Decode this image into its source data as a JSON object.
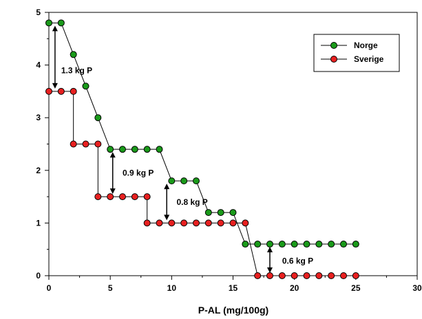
{
  "chart_data": {
    "type": "line",
    "title": "",
    "xlabel": "P-AL (mg/100g)",
    "ylabel": "",
    "xlim": [
      0,
      30
    ],
    "ylim": [
      0,
      5
    ],
    "x_ticks": [
      "0",
      "5",
      "10",
      "15",
      "20",
      "25",
      "30"
    ],
    "y_ticks": [
      "0",
      "1",
      "2",
      "3",
      "4",
      "5"
    ],
    "grid": false,
    "legend_position": "top-right",
    "series": [
      {
        "name": "Norge",
        "color": "#1a9a1a",
        "x": [
          0,
          1,
          2,
          3,
          4,
          5,
          6,
          7,
          8,
          9,
          10,
          11,
          12,
          13,
          14,
          15,
          16,
          17,
          18,
          19,
          20,
          21,
          22,
          23,
          24,
          25
        ],
        "y": [
          4.8,
          4.8,
          4.2,
          3.6,
          3.0,
          2.4,
          2.4,
          2.4,
          2.4,
          2.4,
          1.8,
          1.8,
          1.8,
          1.2,
          1.2,
          1.2,
          0.6,
          0.6,
          0.6,
          0.6,
          0.6,
          0.6,
          0.6,
          0.6,
          0.6,
          0.6
        ],
        "step": false
      },
      {
        "name": "Sverige",
        "color": "#e82020",
        "x": [
          0,
          1,
          2,
          2,
          3,
          4,
          4,
          5,
          6,
          7,
          8,
          8,
          9,
          10,
          11,
          12,
          13,
          14,
          15,
          16,
          17,
          18,
          19,
          20,
          21,
          22,
          23,
          24,
          25
        ],
        "y": [
          3.5,
          3.5,
          3.5,
          2.5,
          2.5,
          2.5,
          1.5,
          1.5,
          1.5,
          1.5,
          1.5,
          1.0,
          1.0,
          1.0,
          1.0,
          1.0,
          1.0,
          1.0,
          1.0,
          1.0,
          0,
          0,
          0,
          0,
          0,
          0,
          0,
          0,
          0
        ],
        "markers": [
          [
            0,
            3.5
          ],
          [
            1,
            3.5
          ],
          [
            2,
            3.5
          ],
          [
            2,
            2.5
          ],
          [
            3,
            2.5
          ],
          [
            4,
            2.5
          ],
          [
            4,
            1.5
          ],
          [
            5,
            1.5
          ],
          [
            6,
            1.5
          ],
          [
            7,
            1.5
          ],
          [
            8,
            1.5
          ],
          [
            8,
            1.0
          ],
          [
            9,
            1.0
          ],
          [
            10,
            1.0
          ],
          [
            11,
            1.0
          ],
          [
            12,
            1.0
          ],
          [
            13,
            1.0
          ],
          [
            14,
            1.0
          ],
          [
            15,
            1.0
          ],
          [
            16,
            1.0
          ],
          [
            17,
            0
          ],
          [
            18,
            0
          ],
          [
            19,
            0
          ],
          [
            20,
            0
          ],
          [
            21,
            0
          ],
          [
            22,
            0
          ],
          [
            23,
            0
          ],
          [
            24,
            0
          ],
          [
            25,
            0
          ]
        ]
      }
    ],
    "annotations": [
      {
        "text": "1.3 kg P",
        "x": 0.5,
        "y1": 3.5,
        "y2": 4.8,
        "label_x": 1.0,
        "label_y": 3.9
      },
      {
        "text": "0.9 kg P",
        "x": 5.2,
        "y1": 1.5,
        "y2": 2.4,
        "label_x": 6.0,
        "label_y": 1.95
      },
      {
        "text": "0.8 kg P",
        "x": 9.6,
        "y1": 1.0,
        "y2": 1.8,
        "label_x": 10.4,
        "label_y": 1.4
      },
      {
        "text": "0.6 kg P",
        "x": 18.0,
        "y1": 0.0,
        "y2": 0.6,
        "label_x": 19.0,
        "label_y": 0.28
      }
    ]
  }
}
